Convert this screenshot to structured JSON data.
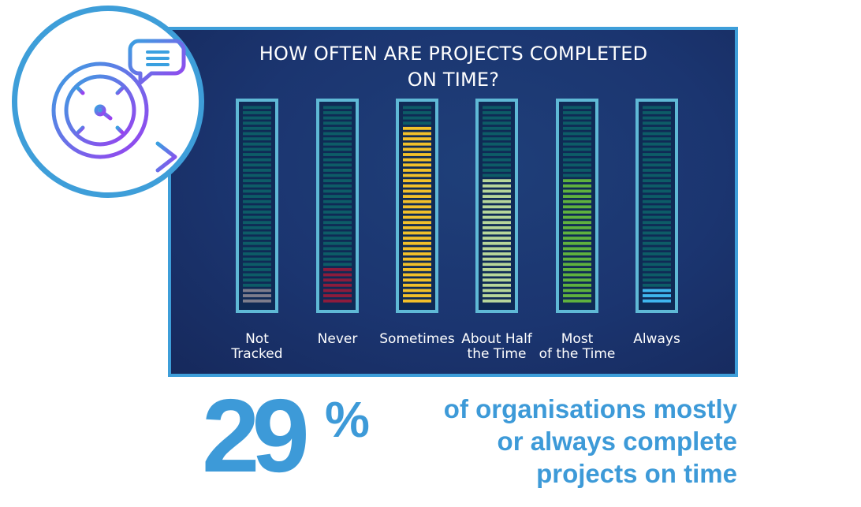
{
  "chart_data": {
    "type": "bar",
    "title": "HOW OFTEN ARE PROJECTS COMPLETED\nON TIME?",
    "categories": [
      {
        "label": "Not\nTracked",
        "color": "#7d7d8c"
      },
      {
        "label": "Never",
        "color": "#8c1c3c"
      },
      {
        "label": "Sometimes",
        "color": "#f2c02a"
      },
      {
        "label": "About Half\nthe Time",
        "color": "#b7d69a"
      },
      {
        "label": "Most\nof the Time",
        "color": "#5fb13e"
      },
      {
        "label": "Always",
        "color": "#3fb6ee"
      }
    ],
    "values": [
      3,
      7,
      34,
      24,
      24,
      3
    ],
    "ylim": [
      0,
      38
    ],
    "unit": "segments lit",
    "track_color": "#0d5c67",
    "frame_color": "#5fb9d6"
  },
  "stat": {
    "number": "29",
    "percent": "%",
    "text": "of organisations mostly\nor always complete\nprojects on time"
  },
  "colors": {
    "accent": "#3e9ed9",
    "panel": "#1b3570",
    "icon_gradient_start": "#3aa0e0",
    "icon_gradient_end": "#9b3ff0"
  },
  "icons": {
    "clock": "clock-arrow-icon",
    "chat": "chat-bubble-icon"
  }
}
